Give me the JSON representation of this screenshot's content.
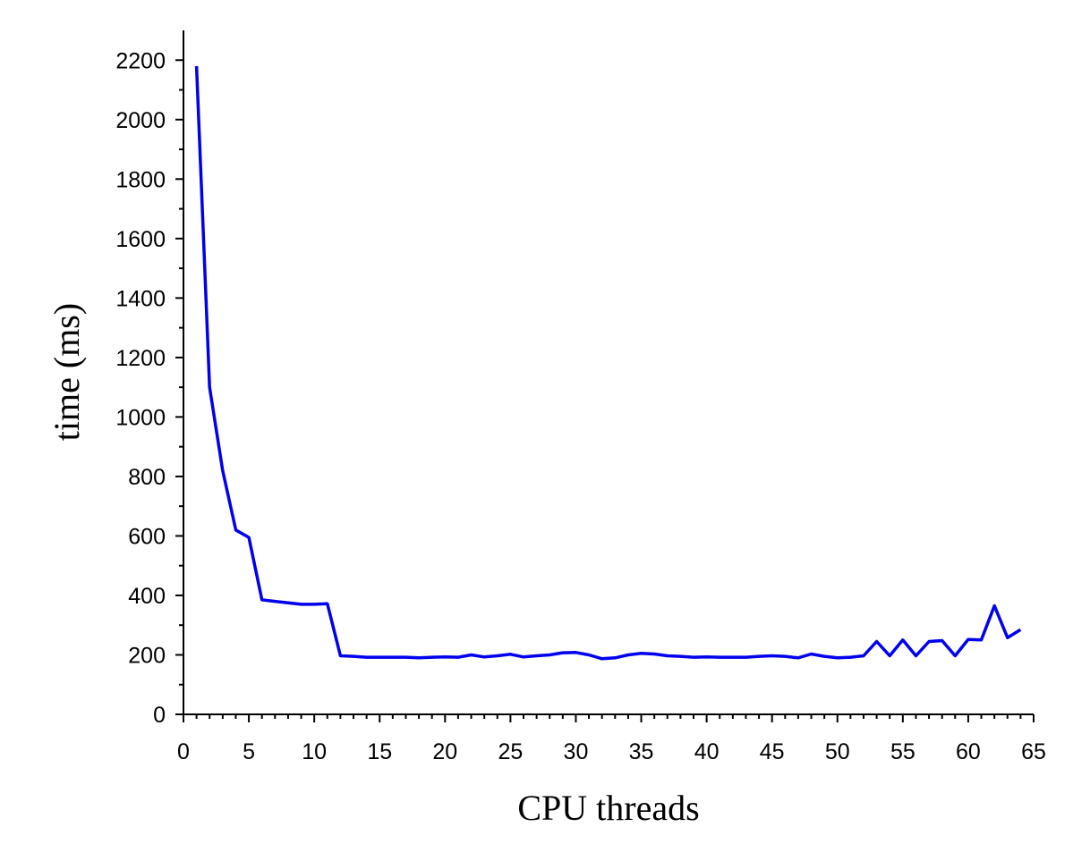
{
  "chart_data": {
    "type": "line",
    "title": "",
    "xlabel": "CPU threads",
    "ylabel": "time (ms)",
    "xlim": [
      0,
      65
    ],
    "ylim": [
      0,
      2300
    ],
    "xticks": [
      0,
      5,
      10,
      15,
      20,
      25,
      30,
      35,
      40,
      45,
      50,
      55,
      60,
      65
    ],
    "yticks": [
      0,
      200,
      400,
      600,
      800,
      1000,
      1200,
      1400,
      1600,
      1800,
      2000,
      2200
    ],
    "grid": false,
    "legend": "none",
    "series": [
      {
        "color": "#0000ee",
        "x": [
          1,
          2,
          3,
          4,
          5,
          6,
          7,
          8,
          9,
          10,
          11,
          12,
          13,
          14,
          15,
          16,
          17,
          18,
          19,
          20,
          21,
          22,
          23,
          24,
          25,
          26,
          27,
          28,
          29,
          30,
          31,
          32,
          33,
          34,
          35,
          36,
          37,
          38,
          39,
          40,
          41,
          42,
          43,
          44,
          45,
          46,
          47,
          48,
          49,
          50,
          51,
          52,
          53,
          54,
          55,
          56,
          57,
          58,
          59,
          60,
          61,
          62,
          63,
          64
        ],
        "y": [
          2180,
          1100,
          820,
          620,
          595,
          385,
          380,
          375,
          370,
          370,
          372,
          197,
          195,
          192,
          192,
          192,
          192,
          190,
          192,
          193,
          192,
          200,
          193,
          197,
          202,
          193,
          197,
          200,
          207,
          208,
          200,
          187,
          190,
          200,
          205,
          203,
          197,
          195,
          192,
          193,
          192,
          192,
          192,
          195,
          197,
          195,
          190,
          203,
          195,
          190,
          192,
          197,
          245,
          197,
          250,
          197,
          245,
          248,
          197,
          252,
          250,
          365,
          258,
          285
        ]
      }
    ]
  }
}
